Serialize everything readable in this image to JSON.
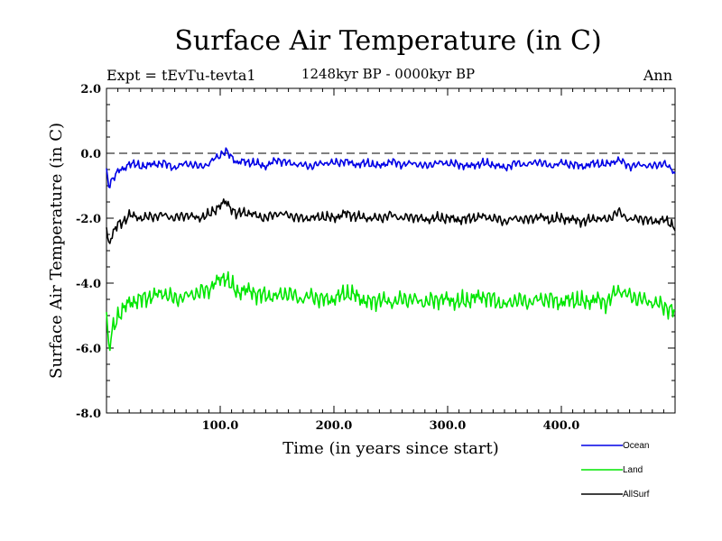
{
  "chart_data": {
    "type": "line",
    "title": "Surface Air Temperature (in C)",
    "subtitle": "1248kyr BP - 0000kyr BP",
    "expt_label": "Expt = tEvTu-tevta1",
    "period_label": "Ann",
    "xlabel": "Time (in years since start)",
    "ylabel": "Surface Air Temperature (in C)",
    "xlim": [
      0,
      500
    ],
    "ylim": [
      -8.0,
      2.0
    ],
    "x_ticks": [
      100,
      200,
      300,
      400
    ],
    "x_tick_labels": [
      "100.0",
      "200.0",
      "300.0",
      "400.0"
    ],
    "y_ticks": [
      2,
      0,
      -2,
      -4,
      -6,
      -8
    ],
    "y_tick_labels": [
      "2.0",
      "0.0",
      "-2.0",
      "-4.0",
      "-6.0",
      "-8.0"
    ],
    "reference_line": {
      "y": 0.0,
      "style": "dashed"
    },
    "series": [
      {
        "name": "Ocean",
        "color": "#0000e6",
        "x": [
          0,
          2,
          5,
          10,
          15,
          20,
          30,
          40,
          50,
          60,
          70,
          80,
          90,
          95,
          100,
          105,
          110,
          115,
          120,
          130,
          140,
          150,
          160,
          170,
          180,
          190,
          200,
          210,
          220,
          230,
          240,
          250,
          260,
          270,
          280,
          290,
          300,
          310,
          320,
          330,
          340,
          350,
          360,
          370,
          380,
          390,
          400,
          410,
          420,
          430,
          440,
          450,
          460,
          470,
          480,
          490,
          500
        ],
        "y": [
          -0.6,
          -1.0,
          -0.8,
          -0.55,
          -0.5,
          -0.3,
          -0.4,
          -0.35,
          -0.3,
          -0.45,
          -0.3,
          -0.4,
          -0.35,
          -0.15,
          -0.05,
          0.05,
          -0.1,
          -0.3,
          -0.25,
          -0.3,
          -0.4,
          -0.2,
          -0.3,
          -0.35,
          -0.4,
          -0.3,
          -0.3,
          -0.25,
          -0.35,
          -0.3,
          -0.4,
          -0.25,
          -0.35,
          -0.3,
          -0.4,
          -0.3,
          -0.3,
          -0.35,
          -0.4,
          -0.3,
          -0.35,
          -0.45,
          -0.3,
          -0.35,
          -0.25,
          -0.4,
          -0.3,
          -0.35,
          -0.4,
          -0.3,
          -0.35,
          -0.2,
          -0.4,
          -0.35,
          -0.4,
          -0.3,
          -0.6
        ]
      },
      {
        "name": "Land",
        "color": "#00e600",
        "x": [
          0,
          2,
          5,
          10,
          15,
          20,
          30,
          40,
          50,
          60,
          70,
          80,
          90,
          95,
          100,
          105,
          110,
          115,
          120,
          130,
          140,
          150,
          160,
          170,
          180,
          190,
          200,
          210,
          220,
          230,
          240,
          250,
          260,
          270,
          280,
          290,
          300,
          310,
          320,
          330,
          340,
          350,
          360,
          370,
          380,
          390,
          400,
          410,
          420,
          430,
          440,
          450,
          460,
          470,
          480,
          490,
          500
        ],
        "y": [
          -4.9,
          -6.1,
          -5.5,
          -5.0,
          -4.8,
          -4.6,
          -4.5,
          -4.4,
          -4.3,
          -4.5,
          -4.4,
          -4.3,
          -4.2,
          -4.0,
          -3.9,
          -3.8,
          -4.1,
          -4.3,
          -4.2,
          -4.3,
          -4.4,
          -4.4,
          -4.3,
          -4.5,
          -4.4,
          -4.5,
          -4.5,
          -4.3,
          -4.4,
          -4.6,
          -4.5,
          -4.6,
          -4.5,
          -4.5,
          -4.6,
          -4.5,
          -4.5,
          -4.6,
          -4.5,
          -4.4,
          -4.5,
          -4.7,
          -4.5,
          -4.6,
          -4.5,
          -4.5,
          -4.6,
          -4.5,
          -4.6,
          -4.5,
          -4.6,
          -4.2,
          -4.4,
          -4.5,
          -4.6,
          -4.7,
          -4.9
        ]
      },
      {
        "name": "AllSurf",
        "color": "#000000",
        "x": [
          0,
          2,
          5,
          10,
          15,
          20,
          30,
          40,
          50,
          60,
          70,
          80,
          90,
          95,
          100,
          105,
          110,
          115,
          120,
          130,
          140,
          150,
          160,
          170,
          180,
          190,
          200,
          210,
          220,
          230,
          240,
          250,
          260,
          270,
          280,
          290,
          300,
          310,
          320,
          330,
          340,
          350,
          360,
          370,
          380,
          390,
          400,
          410,
          420,
          430,
          440,
          450,
          460,
          470,
          480,
          490,
          500
        ],
        "y": [
          -2.3,
          -2.8,
          -2.5,
          -2.2,
          -2.1,
          -1.9,
          -2.0,
          -1.95,
          -1.9,
          -2.0,
          -1.9,
          -2.0,
          -1.9,
          -1.75,
          -1.6,
          -1.5,
          -1.7,
          -1.9,
          -1.8,
          -1.9,
          -2.0,
          -1.85,
          -1.9,
          -2.0,
          -2.0,
          -1.95,
          -2.0,
          -1.85,
          -1.95,
          -2.0,
          -2.0,
          -1.9,
          -2.0,
          -1.95,
          -2.05,
          -2.0,
          -2.0,
          -2.05,
          -2.0,
          -1.95,
          -2.0,
          -2.1,
          -2.0,
          -2.05,
          -1.95,
          -2.05,
          -2.0,
          -2.05,
          -2.1,
          -2.0,
          -2.05,
          -1.8,
          -2.05,
          -2.0,
          -2.1,
          -2.05,
          -2.25
        ]
      }
    ],
    "legend": [
      {
        "label": "Ocean",
        "color": "#0000e6"
      },
      {
        "label": "Land",
        "color": "#00e600"
      },
      {
        "label": "AllSurf",
        "color": "#000000"
      }
    ],
    "legend_position": "bottom-right"
  }
}
